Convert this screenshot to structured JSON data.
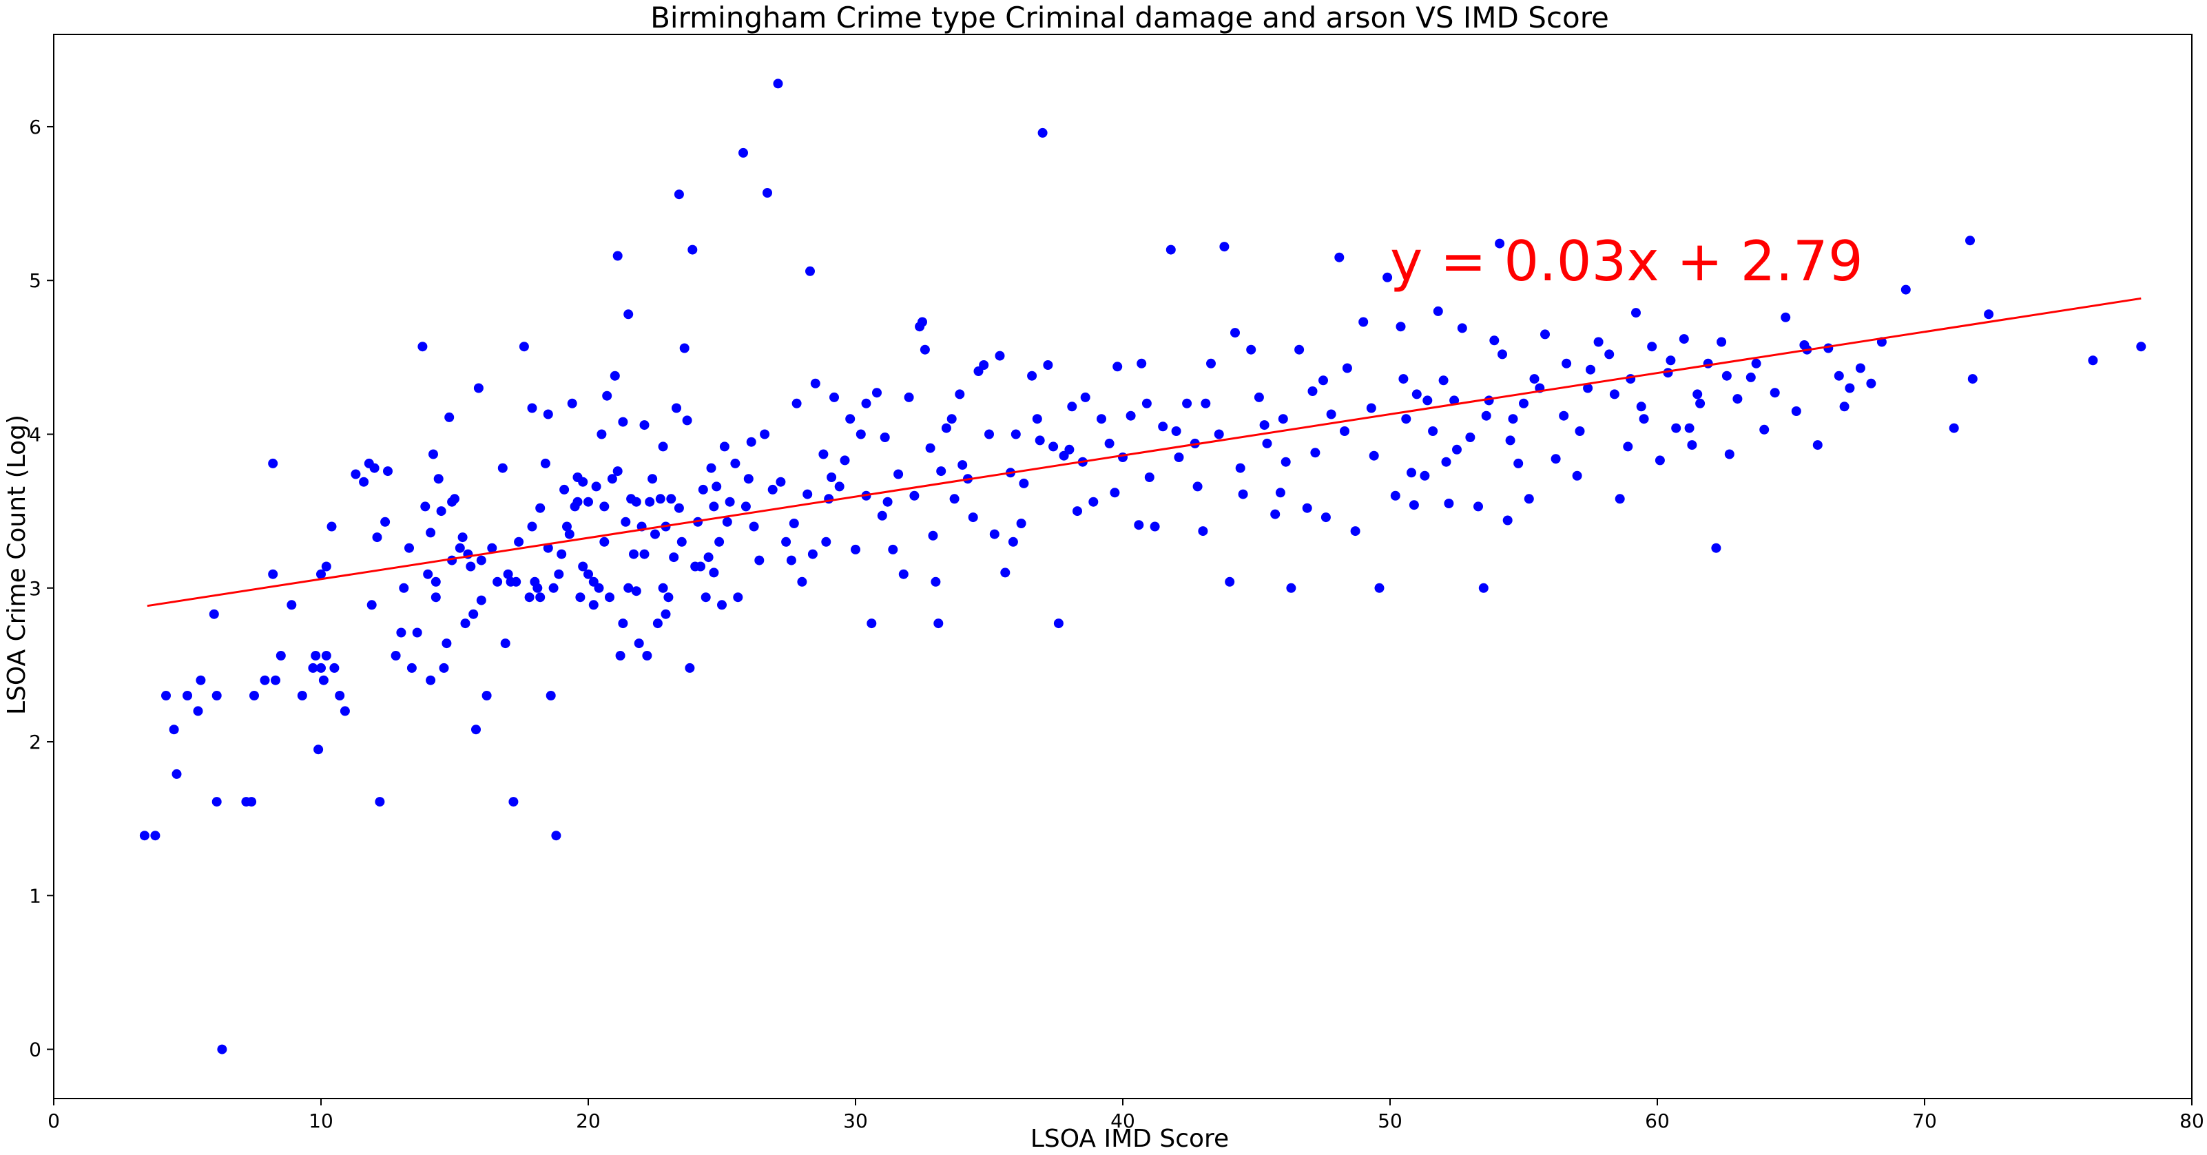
{
  "chart_data": {
    "type": "scatter",
    "title": "Birmingham Crime type Criminal damage and arson VS IMD Score",
    "xlabel": "LSOA IMD Score",
    "ylabel": "LSOA Crime Count (Log)",
    "xlim": [
      0,
      80
    ],
    "ylim": [
      -0.32,
      6.6
    ],
    "xticks": [
      0,
      10,
      20,
      30,
      40,
      50,
      60,
      70,
      80
    ],
    "yticks": [
      0,
      1,
      2,
      3,
      4,
      5,
      6
    ],
    "grid": false,
    "colors": {
      "points": "#0000ff",
      "trend": "#ff0000"
    },
    "trendline": {
      "label": "y = 0.03x + 2.79",
      "slope": 0.0268,
      "intercept": 2.79,
      "x_range": [
        3.5,
        78.1
      ]
    },
    "points": [
      [
        3.4,
        1.39
      ],
      [
        3.8,
        1.39
      ],
      [
        4.2,
        2.3
      ],
      [
        4.5,
        2.08
      ],
      [
        4.6,
        1.79
      ],
      [
        5.0,
        2.3
      ],
      [
        5.4,
        2.2
      ],
      [
        5.5,
        2.4
      ],
      [
        6.0,
        2.83
      ],
      [
        6.1,
        1.61
      ],
      [
        6.1,
        2.3
      ],
      [
        6.3,
        0.0
      ],
      [
        7.2,
        1.61
      ],
      [
        7.4,
        1.61
      ],
      [
        7.5,
        2.3
      ],
      [
        7.9,
        2.4
      ],
      [
        8.2,
        3.09
      ],
      [
        8.2,
        3.81
      ],
      [
        8.3,
        2.4
      ],
      [
        8.5,
        2.56
      ],
      [
        8.9,
        2.89
      ],
      [
        9.3,
        2.3
      ],
      [
        9.7,
        2.48
      ],
      [
        9.8,
        2.56
      ],
      [
        9.9,
        1.95
      ],
      [
        10.0,
        3.09
      ],
      [
        10.0,
        2.48
      ],
      [
        10.1,
        2.4
      ],
      [
        10.2,
        3.14
      ],
      [
        10.2,
        2.56
      ],
      [
        10.4,
        3.4
      ],
      [
        10.5,
        2.48
      ],
      [
        10.7,
        2.3
      ],
      [
        10.9,
        2.2
      ],
      [
        11.3,
        3.74
      ],
      [
        11.6,
        3.69
      ],
      [
        11.8,
        3.81
      ],
      [
        11.9,
        2.89
      ],
      [
        12.0,
        3.78
      ],
      [
        12.1,
        3.33
      ],
      [
        12.2,
        1.61
      ],
      [
        12.4,
        3.43
      ],
      [
        12.5,
        3.76
      ],
      [
        12.8,
        2.56
      ],
      [
        13.0,
        2.71
      ],
      [
        13.1,
        3.0
      ],
      [
        13.3,
        3.26
      ],
      [
        13.4,
        2.48
      ],
      [
        13.6,
        2.71
      ],
      [
        13.8,
        4.57
      ],
      [
        13.9,
        3.53
      ],
      [
        14.0,
        3.09
      ],
      [
        14.1,
        2.4
      ],
      [
        14.2,
        3.87
      ],
      [
        14.3,
        2.94
      ],
      [
        14.3,
        3.04
      ],
      [
        14.4,
        3.71
      ],
      [
        14.5,
        3.5
      ],
      [
        14.6,
        2.48
      ],
      [
        14.7,
        2.64
      ],
      [
        14.8,
        4.11
      ],
      [
        14.9,
        3.56
      ],
      [
        14.9,
        3.18
      ],
      [
        15.0,
        3.58
      ],
      [
        15.2,
        3.26
      ],
      [
        15.3,
        3.33
      ],
      [
        15.4,
        2.77
      ],
      [
        15.5,
        3.22
      ],
      [
        15.6,
        3.14
      ],
      [
        15.7,
        2.83
      ],
      [
        15.8,
        2.08
      ],
      [
        15.9,
        4.3
      ],
      [
        16.0,
        3.18
      ],
      [
        16.2,
        2.3
      ],
      [
        16.4,
        3.26
      ],
      [
        16.6,
        3.04
      ],
      [
        16.8,
        3.78
      ],
      [
        16.9,
        2.64
      ],
      [
        17.0,
        3.09
      ],
      [
        17.1,
        3.04
      ],
      [
        17.2,
        1.61
      ],
      [
        17.4,
        3.3
      ],
      [
        17.6,
        4.57
      ],
      [
        17.8,
        2.94
      ],
      [
        17.9,
        3.4
      ],
      [
        17.9,
        4.17
      ],
      [
        18.0,
        3.04
      ],
      [
        18.1,
        3.0
      ],
      [
        18.2,
        2.94
      ],
      [
        18.4,
        3.81
      ],
      [
        18.5,
        4.13
      ],
      [
        18.5,
        3.26
      ],
      [
        18.6,
        2.3
      ],
      [
        18.7,
        3.0
      ],
      [
        18.8,
        1.39
      ],
      [
        18.9,
        3.09
      ],
      [
        19.0,
        3.22
      ],
      [
        19.1,
        3.64
      ],
      [
        19.2,
        3.4
      ],
      [
        19.3,
        3.35
      ],
      [
        19.4,
        4.2
      ],
      [
        19.5,
        3.53
      ],
      [
        19.6,
        3.56
      ],
      [
        19.7,
        2.94
      ],
      [
        19.8,
        3.14
      ],
      [
        19.8,
        3.69
      ],
      [
        20.0,
        3.09
      ],
      [
        20.0,
        3.56
      ],
      [
        20.2,
        2.89
      ],
      [
        20.2,
        3.04
      ],
      [
        20.3,
        3.66
      ],
      [
        20.4,
        3.0
      ],
      [
        20.5,
        4.0
      ],
      [
        20.6,
        3.53
      ],
      [
        20.7,
        4.25
      ],
      [
        20.8,
        2.94
      ],
      [
        20.9,
        3.71
      ],
      [
        21.0,
        4.38
      ],
      [
        21.1,
        3.76
      ],
      [
        21.1,
        5.16
      ],
      [
        21.2,
        2.56
      ],
      [
        21.3,
        2.77
      ],
      [
        21.3,
        4.08
      ],
      [
        21.4,
        3.43
      ],
      [
        21.5,
        3.0
      ],
      [
        21.5,
        4.78
      ],
      [
        21.6,
        3.58
      ],
      [
        21.7,
        3.22
      ],
      [
        21.8,
        3.56
      ],
      [
        21.9,
        2.64
      ],
      [
        22.0,
        3.4
      ],
      [
        22.1,
        3.22
      ],
      [
        22.1,
        4.06
      ],
      [
        22.2,
        2.56
      ],
      [
        22.3,
        3.56
      ],
      [
        22.4,
        3.71
      ],
      [
        22.5,
        3.35
      ],
      [
        22.6,
        2.77
      ],
      [
        22.7,
        3.58
      ],
      [
        22.8,
        3.0
      ],
      [
        22.9,
        2.83
      ],
      [
        22.9,
        3.4
      ],
      [
        23.0,
        2.94
      ],
      [
        23.1,
        3.58
      ],
      [
        23.2,
        3.2
      ],
      [
        23.3,
        4.17
      ],
      [
        23.4,
        5.56
      ],
      [
        23.5,
        3.3
      ],
      [
        23.6,
        4.56
      ],
      [
        23.7,
        4.09
      ],
      [
        23.8,
        2.48
      ],
      [
        23.9,
        5.2
      ],
      [
        24.0,
        3.14
      ],
      [
        24.1,
        3.43
      ],
      [
        24.2,
        3.14
      ],
      [
        24.3,
        3.64
      ],
      [
        24.4,
        2.94
      ],
      [
        24.5,
        3.2
      ],
      [
        24.6,
        3.78
      ],
      [
        24.7,
        3.53
      ],
      [
        24.8,
        3.66
      ],
      [
        24.9,
        3.3
      ],
      [
        25.0,
        2.89
      ],
      [
        25.1,
        3.92
      ],
      [
        25.2,
        3.43
      ],
      [
        25.3,
        3.56
      ],
      [
        25.5,
        3.81
      ],
      [
        25.6,
        2.94
      ],
      [
        25.8,
        5.83
      ],
      [
        25.9,
        3.53
      ],
      [
        26.0,
        3.71
      ],
      [
        26.2,
        3.4
      ],
      [
        26.4,
        3.18
      ],
      [
        26.6,
        4.0
      ],
      [
        26.7,
        5.57
      ],
      [
        26.9,
        3.64
      ],
      [
        27.1,
        6.28
      ],
      [
        27.2,
        3.69
      ],
      [
        27.4,
        3.3
      ],
      [
        27.6,
        3.18
      ],
      [
        27.8,
        4.2
      ],
      [
        28.0,
        3.04
      ],
      [
        28.2,
        3.61
      ],
      [
        28.3,
        5.06
      ],
      [
        28.4,
        3.22
      ],
      [
        28.5,
        4.33
      ],
      [
        28.8,
        3.87
      ],
      [
        29.0,
        3.58
      ],
      [
        29.2,
        4.24
      ],
      [
        29.4,
        3.66
      ],
      [
        29.6,
        3.83
      ],
      [
        29.8,
        4.1
      ],
      [
        30.0,
        3.25
      ],
      [
        30.2,
        4.0
      ],
      [
        30.4,
        4.2
      ],
      [
        30.6,
        2.77
      ],
      [
        30.8,
        4.27
      ],
      [
        31.0,
        3.47
      ],
      [
        31.2,
        3.56
      ],
      [
        31.4,
        3.25
      ],
      [
        31.6,
        3.74
      ],
      [
        31.8,
        3.09
      ],
      [
        32.0,
        4.24
      ],
      [
        32.2,
        3.6
      ],
      [
        32.4,
        4.7
      ],
      [
        32.5,
        4.73
      ],
      [
        32.6,
        4.55
      ],
      [
        32.8,
        3.91
      ],
      [
        33.0,
        3.04
      ],
      [
        33.1,
        2.77
      ],
      [
        33.2,
        3.76
      ],
      [
        33.4,
        4.04
      ],
      [
        33.6,
        4.1
      ],
      [
        33.9,
        4.26
      ],
      [
        34.2,
        3.71
      ],
      [
        34.4,
        3.46
      ],
      [
        34.6,
        4.41
      ],
      [
        34.8,
        4.45
      ],
      [
        35.0,
        4.0
      ],
      [
        35.2,
        3.35
      ],
      [
        35.4,
        4.51
      ],
      [
        35.6,
        3.1
      ],
      [
        35.8,
        3.75
      ],
      [
        36.0,
        4.0
      ],
      [
        36.3,
        3.68
      ],
      [
        36.6,
        4.38
      ],
      [
        36.8,
        4.1
      ],
      [
        37.0,
        5.96
      ],
      [
        37.2,
        4.45
      ],
      [
        37.4,
        3.92
      ],
      [
        37.6,
        2.77
      ],
      [
        37.8,
        3.86
      ],
      [
        38.0,
        3.9
      ],
      [
        38.3,
        3.5
      ],
      [
        38.6,
        4.24
      ],
      [
        38.9,
        3.56
      ],
      [
        39.2,
        4.1
      ],
      [
        39.5,
        3.94
      ],
      [
        39.8,
        4.44
      ],
      [
        40.0,
        3.85
      ],
      [
        40.3,
        4.12
      ],
      [
        40.6,
        3.41
      ],
      [
        40.9,
        4.2
      ],
      [
        41.2,
        3.4
      ],
      [
        41.5,
        4.05
      ],
      [
        41.8,
        5.2
      ],
      [
        42.1,
        3.85
      ],
      [
        42.4,
        4.2
      ],
      [
        42.7,
        3.94
      ],
      [
        43.0,
        3.37
      ],
      [
        43.3,
        4.46
      ],
      [
        43.6,
        4.0
      ],
      [
        43.8,
        5.22
      ],
      [
        44.0,
        3.04
      ],
      [
        44.2,
        4.66
      ],
      [
        44.5,
        3.61
      ],
      [
        44.8,
        4.55
      ],
      [
        45.1,
        4.24
      ],
      [
        45.4,
        3.94
      ],
      [
        45.7,
        3.48
      ],
      [
        46.0,
        4.1
      ],
      [
        46.3,
        3.0
      ],
      [
        46.6,
        4.55
      ],
      [
        46.9,
        3.52
      ],
      [
        47.2,
        3.88
      ],
      [
        47.5,
        4.35
      ],
      [
        47.8,
        4.13
      ],
      [
        48.1,
        5.15
      ],
      [
        48.4,
        4.43
      ],
      [
        48.7,
        3.37
      ],
      [
        49.0,
        4.73
      ],
      [
        49.3,
        4.17
      ],
      [
        49.6,
        3.0
      ],
      [
        49.9,
        5.02
      ],
      [
        50.2,
        3.6
      ],
      [
        50.4,
        4.7
      ],
      [
        50.6,
        4.1
      ],
      [
        50.8,
        3.75
      ],
      [
        51.0,
        4.26
      ],
      [
        51.3,
        3.73
      ],
      [
        51.6,
        4.02
      ],
      [
        51.8,
        4.8
      ],
      [
        52.0,
        4.35
      ],
      [
        52.2,
        3.55
      ],
      [
        52.4,
        4.22
      ],
      [
        52.7,
        4.69
      ],
      [
        53.0,
        3.98
      ],
      [
        53.3,
        3.53
      ],
      [
        53.5,
        3.0
      ],
      [
        53.7,
        4.22
      ],
      [
        53.9,
        4.61
      ],
      [
        54.1,
        5.24
      ],
      [
        54.2,
        4.52
      ],
      [
        54.4,
        3.44
      ],
      [
        54.6,
        4.1
      ],
      [
        54.8,
        3.81
      ],
      [
        55.0,
        4.2
      ],
      [
        55.4,
        4.36
      ],
      [
        55.8,
        4.65
      ],
      [
        56.2,
        3.84
      ],
      [
        56.6,
        4.46
      ],
      [
        57.0,
        3.73
      ],
      [
        57.4,
        4.3
      ],
      [
        57.8,
        4.6
      ],
      [
        58.2,
        4.52
      ],
      [
        58.6,
        3.58
      ],
      [
        59.0,
        4.36
      ],
      [
        59.2,
        4.79
      ],
      [
        59.5,
        4.1
      ],
      [
        59.8,
        4.57
      ],
      [
        60.1,
        3.83
      ],
      [
        60.4,
        4.4
      ],
      [
        60.7,
        4.04
      ],
      [
        61.0,
        4.62
      ],
      [
        61.3,
        3.93
      ],
      [
        61.6,
        4.2
      ],
      [
        61.9,
        4.46
      ],
      [
        62.2,
        3.26
      ],
      [
        62.4,
        4.6
      ],
      [
        62.7,
        3.87
      ],
      [
        63.0,
        4.23
      ],
      [
        63.5,
        4.37
      ],
      [
        64.0,
        4.03
      ],
      [
        64.4,
        4.27
      ],
      [
        64.8,
        4.76
      ],
      [
        65.2,
        4.15
      ],
      [
        65.6,
        4.55
      ],
      [
        66.0,
        3.93
      ],
      [
        66.4,
        4.56
      ],
      [
        66.8,
        4.38
      ],
      [
        67.2,
        4.3
      ],
      [
        67.6,
        4.43
      ],
      [
        68.0,
        4.33
      ],
      [
        68.4,
        4.6
      ],
      [
        69.3,
        4.94
      ],
      [
        71.1,
        4.04
      ],
      [
        71.7,
        5.26
      ],
      [
        71.8,
        4.36
      ],
      [
        72.4,
        4.78
      ],
      [
        76.3,
        4.48
      ],
      [
        78.1,
        4.57
      ],
      [
        14.1,
        3.36
      ],
      [
        17.3,
        3.04
      ],
      [
        19.6,
        3.72
      ],
      [
        21.8,
        2.98
      ],
      [
        23.4,
        3.52
      ],
      [
        24.7,
        3.1
      ],
      [
        26.1,
        3.95
      ],
      [
        27.7,
        3.42
      ],
      [
        29.1,
        3.72
      ],
      [
        31.1,
        3.98
      ],
      [
        32.9,
        3.34
      ],
      [
        34.0,
        3.8
      ],
      [
        35.9,
        3.3
      ],
      [
        36.9,
        3.96
      ],
      [
        38.1,
        4.18
      ],
      [
        39.7,
        3.62
      ],
      [
        40.7,
        4.46
      ],
      [
        42.0,
        4.02
      ],
      [
        43.1,
        4.2
      ],
      [
        44.4,
        3.78
      ],
      [
        45.3,
        4.06
      ],
      [
        46.1,
        3.82
      ],
      [
        47.1,
        4.28
      ],
      [
        48.3,
        4.02
      ],
      [
        49.4,
        3.86
      ],
      [
        50.5,
        4.36
      ],
      [
        51.4,
        4.22
      ],
      [
        52.5,
        3.9
      ],
      [
        53.6,
        4.12
      ],
      [
        54.5,
        3.96
      ],
      [
        55.6,
        4.3
      ],
      [
        56.5,
        4.12
      ],
      [
        57.5,
        4.42
      ],
      [
        58.4,
        4.26
      ],
      [
        59.4,
        4.18
      ],
      [
        60.5,
        4.48
      ],
      [
        61.5,
        4.26
      ],
      [
        62.6,
        4.38
      ],
      [
        63.7,
        4.46
      ],
      [
        65.5,
        4.58
      ],
      [
        67.0,
        4.18
      ],
      [
        36.2,
        3.42
      ],
      [
        41.0,
        3.72
      ],
      [
        45.9,
        3.62
      ],
      [
        50.9,
        3.54
      ],
      [
        55.2,
        3.58
      ],
      [
        58.9,
        3.92
      ],
      [
        30.4,
        3.6
      ],
      [
        28.9,
        3.3
      ],
      [
        33.7,
        3.58
      ],
      [
        38.5,
        3.82
      ],
      [
        42.8,
        3.66
      ],
      [
        47.6,
        3.46
      ],
      [
        52.1,
        3.82
      ],
      [
        57.1,
        4.02
      ],
      [
        61.2,
        4.04
      ],
      [
        22.8,
        3.92
      ],
      [
        20.6,
        3.3
      ],
      [
        18.2,
        3.52
      ],
      [
        16.0,
        2.92
      ]
    ]
  }
}
